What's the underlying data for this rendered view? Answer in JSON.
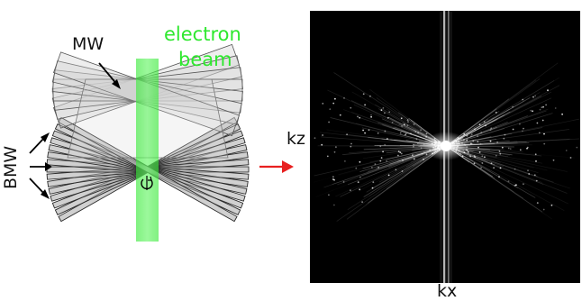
{
  "labels": {
    "mw": "MW",
    "bmw": "BMW",
    "beam_line1": "electron",
    "beam_line2": "beam",
    "kz": "kz",
    "kx": "kx"
  },
  "colors": {
    "beam": "#2ee82e",
    "arrow_red": "#e82020",
    "panel_bg": "#000000",
    "plate_fill": "#bdbdbd",
    "plate_edge": "#333333"
  }
}
